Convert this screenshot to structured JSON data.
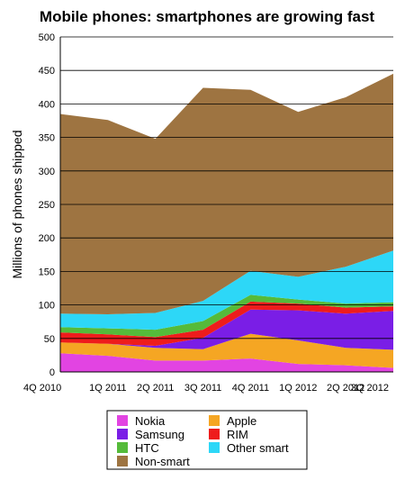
{
  "chart_data": {
    "type": "area",
    "stacked": true,
    "title": "Mobile phones: smartphones are growing fast",
    "ylabel": "Millions of phones shipped",
    "xlabel": "",
    "ylim": [
      0,
      500
    ],
    "ytick_step": 50,
    "grid": true,
    "legend_position": "bottom",
    "categories": [
      "4Q 2010",
      "1Q 2011",
      "2Q 2011",
      "3Q 2011",
      "4Q 2011",
      "1Q 2012",
      "2Q 2012",
      "3Q 2012"
    ],
    "series": [
      {
        "name": "Nokia",
        "color": "#e244e2",
        "values": [
          28,
          24,
          17,
          17,
          20,
          12,
          10,
          6
        ]
      },
      {
        "name": "Samsung",
        "color": "#7a1ee6",
        "values": [
          0,
          0,
          3,
          17,
          36,
          45,
          51,
          58
        ]
      },
      {
        "name": "HTC",
        "color": "#55bb3a",
        "values": [
          8,
          9,
          11,
          13,
          10,
          6,
          6,
          6
        ]
      },
      {
        "name": "Other smart",
        "color": "#2dd7f7",
        "values": [
          20,
          21,
          25,
          30,
          36,
          34,
          55,
          77
        ]
      },
      {
        "name": "Non-smart",
        "color": "#9e7441",
        "values": [
          298,
          290,
          260,
          318,
          270,
          246,
          253,
          264
        ]
      },
      {
        "name": "Apple",
        "color": "#f5a623",
        "values": [
          16,
          18,
          19,
          17,
          37,
          35,
          26,
          27
        ]
      },
      {
        "name": "RIM",
        "color": "#ee1c1c",
        "values": [
          15,
          14,
          13,
          12,
          12,
          10,
          9,
          7
        ]
      }
    ],
    "stack_order": [
      "Nokia",
      "Apple",
      "Samsung",
      "RIM",
      "HTC",
      "Other smart",
      "Non-smart"
    ],
    "legend_order": [
      "Nokia",
      "Apple",
      "Samsung",
      "RIM",
      "HTC",
      "Other smart",
      "Non-smart"
    ]
  }
}
